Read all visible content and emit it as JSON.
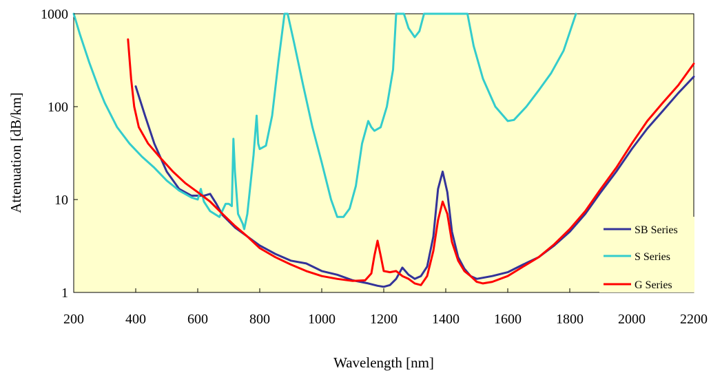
{
  "chart_data": {
    "type": "line",
    "title": "",
    "xlabel": "Wavelength [nm]",
    "ylabel": "Attenuation  [dB/km]",
    "xlim": [
      200,
      2200
    ],
    "ylim": [
      1,
      1000
    ],
    "yscale": "log",
    "xticks": [
      200,
      400,
      600,
      800,
      1000,
      1200,
      1400,
      1600,
      1800,
      2000,
      2200
    ],
    "yticks": [
      1,
      10,
      100,
      1000
    ],
    "xtick_labels": [
      "200",
      "400",
      "600",
      "800",
      "1000",
      "1200",
      "1400",
      "1600",
      "1800",
      "2000",
      "2200"
    ],
    "ytick_labels": [
      "1",
      "10",
      "100",
      "1000"
    ],
    "grid": false,
    "background": "#ffffcc",
    "legend_position": "bottom-right",
    "series": [
      {
        "name": "SB Series",
        "color": "#333399",
        "points": [
          [
            400,
            165
          ],
          [
            430,
            80
          ],
          [
            460,
            40
          ],
          [
            500,
            20
          ],
          [
            540,
            13
          ],
          [
            580,
            11
          ],
          [
            620,
            11
          ],
          [
            640,
            11.5
          ],
          [
            660,
            9
          ],
          [
            680,
            6.8
          ],
          [
            720,
            5
          ],
          [
            760,
            4
          ],
          [
            800,
            3.2
          ],
          [
            850,
            2.6
          ],
          [
            900,
            2.2
          ],
          [
            950,
            2.05
          ],
          [
            1000,
            1.7
          ],
          [
            1050,
            1.55
          ],
          [
            1100,
            1.35
          ],
          [
            1150,
            1.25
          ],
          [
            1180,
            1.18
          ],
          [
            1200,
            1.15
          ],
          [
            1220,
            1.2
          ],
          [
            1240,
            1.4
          ],
          [
            1260,
            1.85
          ],
          [
            1280,
            1.55
          ],
          [
            1300,
            1.4
          ],
          [
            1320,
            1.5
          ],
          [
            1340,
            1.9
          ],
          [
            1360,
            4
          ],
          [
            1375,
            13
          ],
          [
            1390,
            20
          ],
          [
            1405,
            12
          ],
          [
            1420,
            4.5
          ],
          [
            1440,
            2.4
          ],
          [
            1460,
            1.8
          ],
          [
            1480,
            1.5
          ],
          [
            1500,
            1.4
          ],
          [
            1550,
            1.5
          ],
          [
            1600,
            1.65
          ],
          [
            1650,
            2
          ],
          [
            1700,
            2.4
          ],
          [
            1750,
            3.2
          ],
          [
            1800,
            4.5
          ],
          [
            1850,
            7
          ],
          [
            1900,
            12
          ],
          [
            1950,
            20
          ],
          [
            2000,
            35
          ],
          [
            2050,
            58
          ],
          [
            2100,
            90
          ],
          [
            2150,
            140
          ],
          [
            2200,
            210
          ]
        ]
      },
      {
        "name": "S Series",
        "color": "#33cccc",
        "points": [
          [
            200,
            1000
          ],
          [
            220,
            600
          ],
          [
            250,
            300
          ],
          [
            280,
            160
          ],
          [
            300,
            110
          ],
          [
            340,
            60
          ],
          [
            380,
            40
          ],
          [
            420,
            29
          ],
          [
            460,
            22
          ],
          [
            500,
            16
          ],
          [
            540,
            12.5
          ],
          [
            580,
            10.5
          ],
          [
            600,
            10
          ],
          [
            610,
            13
          ],
          [
            620,
            9.5
          ],
          [
            640,
            7.5
          ],
          [
            670,
            6.5
          ],
          [
            690,
            9
          ],
          [
            700,
            9
          ],
          [
            710,
            8.5
          ],
          [
            715,
            45
          ],
          [
            720,
            20
          ],
          [
            730,
            7
          ],
          [
            745,
            5.5
          ],
          [
            750,
            4.8
          ],
          [
            760,
            7
          ],
          [
            780,
            30
          ],
          [
            790,
            80
          ],
          [
            795,
            40
          ],
          [
            800,
            35
          ],
          [
            820,
            38
          ],
          [
            840,
            80
          ],
          [
            860,
            300
          ],
          [
            880,
            1000
          ],
          [
            890,
            1000
          ],
          [
            910,
            500
          ],
          [
            940,
            170
          ],
          [
            970,
            60
          ],
          [
            1000,
            25
          ],
          [
            1030,
            10
          ],
          [
            1050,
            6.5
          ],
          [
            1070,
            6.5
          ],
          [
            1090,
            8
          ],
          [
            1110,
            14
          ],
          [
            1130,
            40
          ],
          [
            1150,
            70
          ],
          [
            1160,
            60
          ],
          [
            1170,
            55
          ],
          [
            1190,
            60
          ],
          [
            1210,
            100
          ],
          [
            1230,
            250
          ],
          [
            1240,
            1000
          ],
          [
            1265,
            1000
          ],
          [
            1280,
            700
          ],
          [
            1300,
            560
          ],
          [
            1315,
            650
          ],
          [
            1330,
            1000
          ],
          [
            1470,
            1000
          ],
          [
            1490,
            450
          ],
          [
            1520,
            200
          ],
          [
            1560,
            100
          ],
          [
            1600,
            70
          ],
          [
            1620,
            72
          ],
          [
            1660,
            100
          ],
          [
            1700,
            150
          ],
          [
            1740,
            230
          ],
          [
            1780,
            400
          ],
          [
            1820,
            1000
          ]
        ]
      },
      {
        "name": "G Series",
        "color": "#ff0000",
        "points": [
          [
            375,
            530
          ],
          [
            385,
            200
          ],
          [
            395,
            100
          ],
          [
            410,
            60
          ],
          [
            440,
            40
          ],
          [
            480,
            28
          ],
          [
            520,
            20
          ],
          [
            560,
            15
          ],
          [
            600,
            12
          ],
          [
            640,
            9.5
          ],
          [
            680,
            7
          ],
          [
            720,
            5.2
          ],
          [
            760,
            4
          ],
          [
            800,
            3
          ],
          [
            850,
            2.4
          ],
          [
            900,
            2
          ],
          [
            950,
            1.7
          ],
          [
            1000,
            1.5
          ],
          [
            1050,
            1.4
          ],
          [
            1100,
            1.33
          ],
          [
            1140,
            1.35
          ],
          [
            1160,
            1.6
          ],
          [
            1170,
            2.5
          ],
          [
            1180,
            3.6
          ],
          [
            1190,
            2.5
          ],
          [
            1200,
            1.7
          ],
          [
            1220,
            1.65
          ],
          [
            1240,
            1.7
          ],
          [
            1260,
            1.5
          ],
          [
            1280,
            1.4
          ],
          [
            1300,
            1.25
          ],
          [
            1320,
            1.2
          ],
          [
            1340,
            1.5
          ],
          [
            1360,
            2.8
          ],
          [
            1375,
            6
          ],
          [
            1390,
            9.5
          ],
          [
            1405,
            7
          ],
          [
            1420,
            3.5
          ],
          [
            1440,
            2.2
          ],
          [
            1460,
            1.7
          ],
          [
            1480,
            1.5
          ],
          [
            1500,
            1.3
          ],
          [
            1520,
            1.25
          ],
          [
            1550,
            1.3
          ],
          [
            1600,
            1.5
          ],
          [
            1650,
            1.9
          ],
          [
            1700,
            2.4
          ],
          [
            1750,
            3.3
          ],
          [
            1800,
            4.8
          ],
          [
            1850,
            7.5
          ],
          [
            1900,
            13
          ],
          [
            1950,
            22
          ],
          [
            2000,
            40
          ],
          [
            2050,
            70
          ],
          [
            2100,
            110
          ],
          [
            2150,
            170
          ],
          [
            2200,
            290
          ]
        ]
      }
    ]
  }
}
